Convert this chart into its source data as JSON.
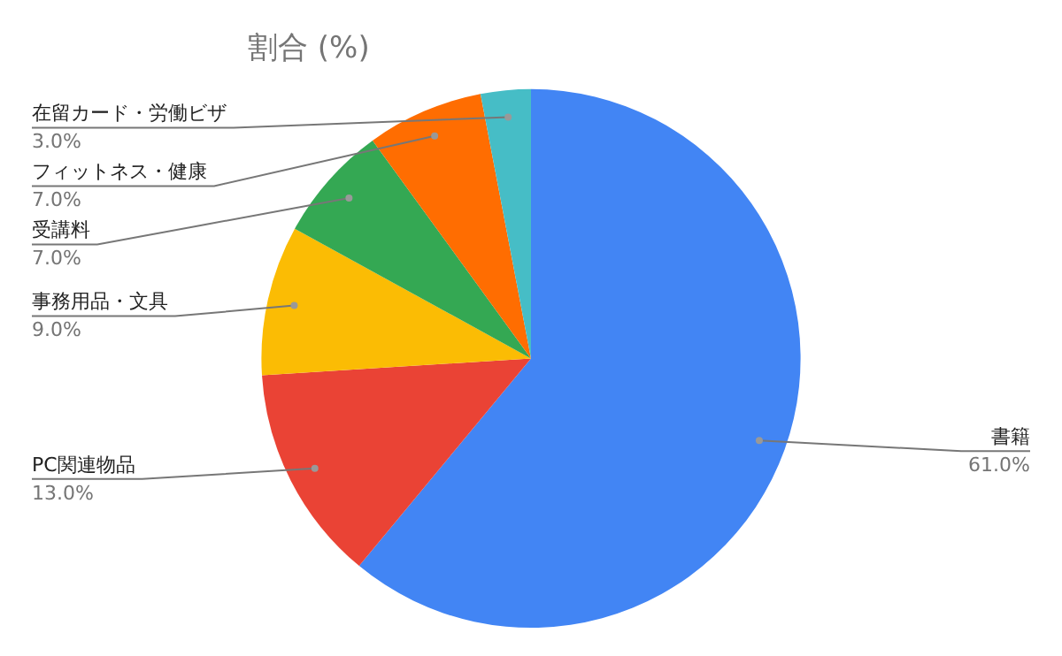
{
  "chart_data": {
    "type": "pie",
    "title": "割合 (%)",
    "categories": [
      "書籍",
      "PC関連物品",
      "事務用品・文具",
      "受講料",
      "フィットネス・健康",
      "在留カード・労働ビザ"
    ],
    "values": [
      61,
      13,
      9,
      7,
      7,
      3
    ],
    "colors": [
      "#4285f4",
      "#ea4335",
      "#fbbc04",
      "#34a853",
      "#ff6d01",
      "#46bdc6"
    ],
    "value_labels": [
      "61.0%",
      "13.0%",
      "9.0%",
      "7.0%",
      "7.0%",
      "3.0%"
    ]
  }
}
